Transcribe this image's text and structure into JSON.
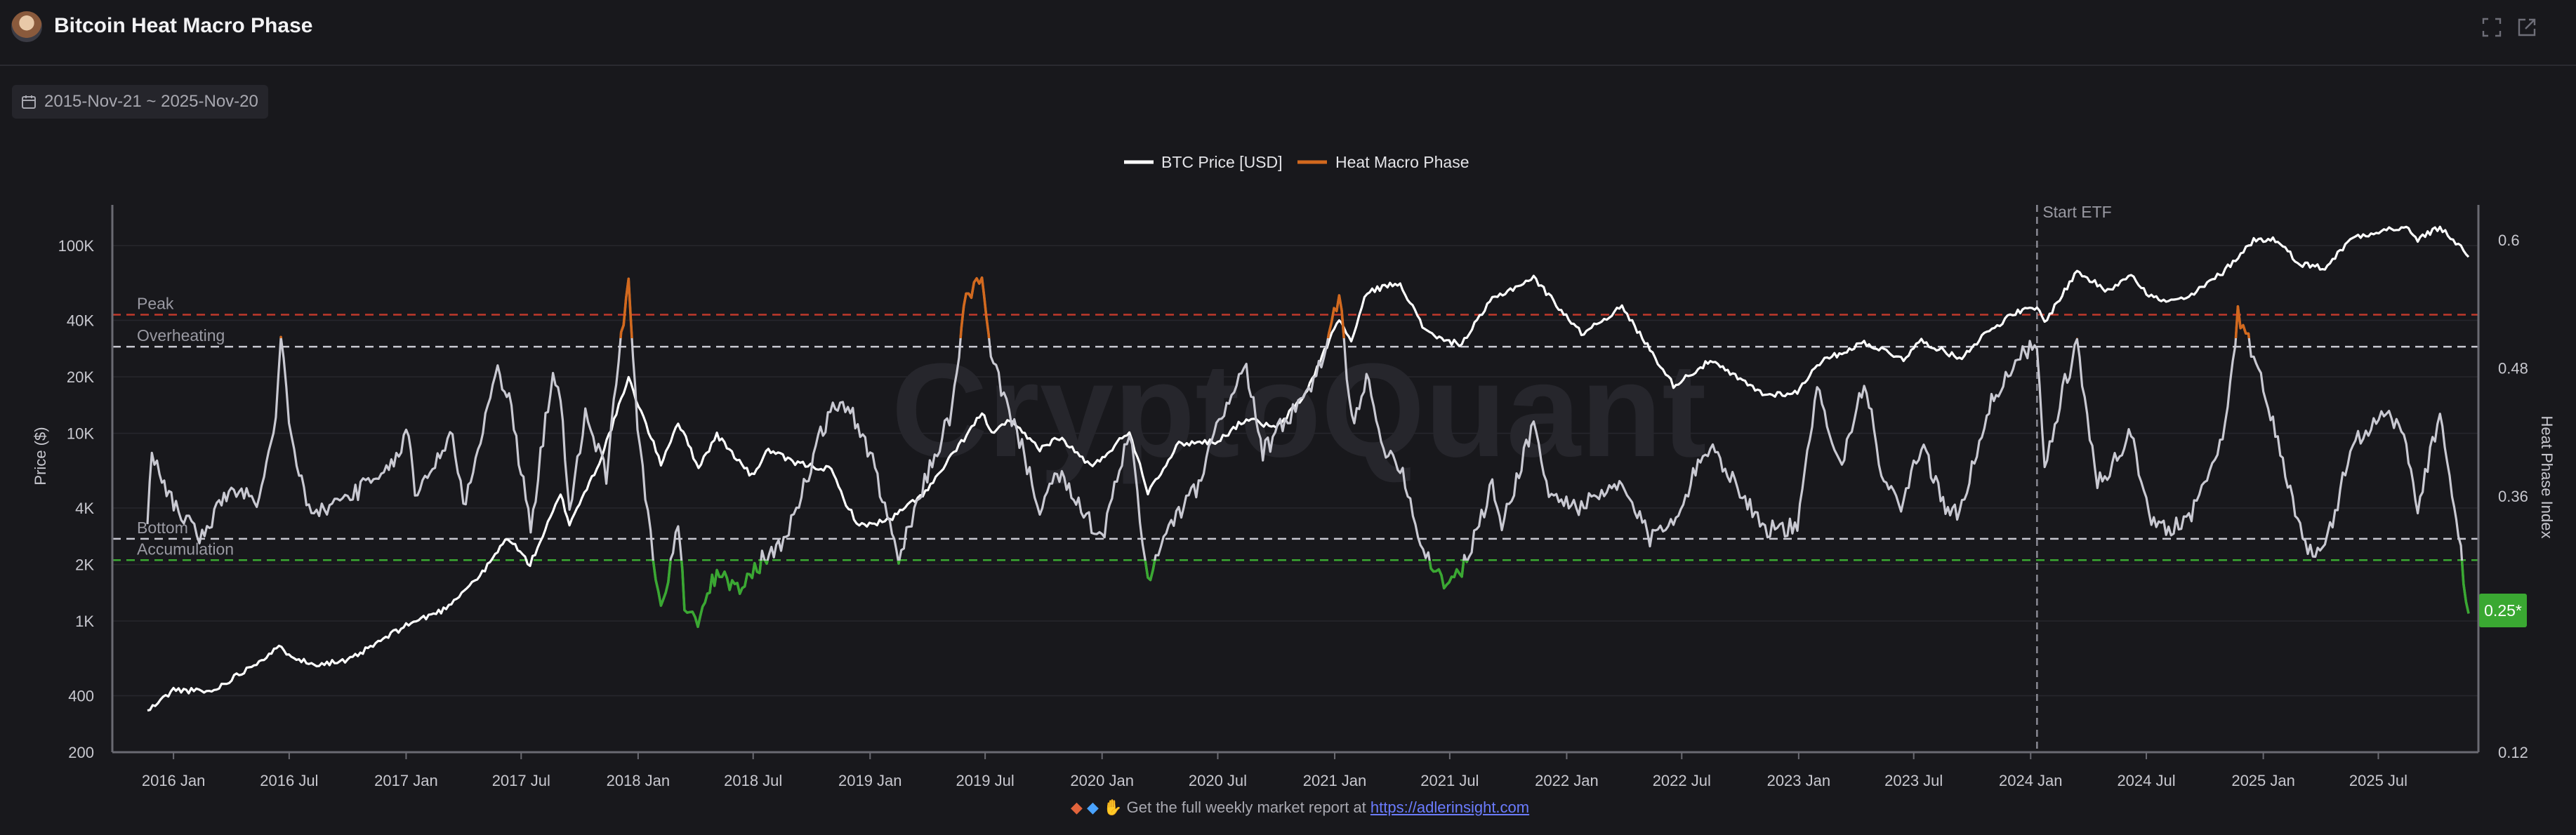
{
  "header": {
    "title": "Bitcoin Heat Macro Phase"
  },
  "toolbar": {
    "date_range": "2015-Nov-21 ~ 2025-Nov-20"
  },
  "footer": {
    "text": "Get the full weekly market report at",
    "link": "https://adlerinsight.com"
  },
  "colors": {
    "background": "#18181c",
    "price": "#ffffff",
    "heat": "#c9c9d2",
    "overheat": "#d2691e",
    "accumulation": "#3aa832",
    "peak_line": "#c0392b",
    "badge": "#3aa832"
  },
  "icons": [
    "avatar",
    "calendar-icon",
    "expand-icon",
    "open-icon"
  ],
  "chart_data": {
    "type": "line",
    "title": "",
    "x_range": [
      "2015-11-21",
      "2025-11-20"
    ],
    "x_ticks": [
      "2016 Jan",
      "2016 Jul",
      "2017 Jan",
      "2017 Jul",
      "2018 Jan",
      "2018 Jul",
      "2019 Jan",
      "2019 Jul",
      "2020 Jan",
      "2020 Jul",
      "2021 Jan",
      "2021 Jul",
      "2022 Jan",
      "2022 Jul",
      "2023 Jan",
      "2023 Jul",
      "2024 Jan",
      "2024 Jul",
      "2025 Jan",
      "2025 Jul"
    ],
    "y_left": {
      "label": "Price ($)",
      "scale": "log",
      "range": [
        200,
        150000
      ],
      "ticks": [
        "200",
        "400",
        "1K",
        "2K",
        "4K",
        "10K",
        "20K",
        "40K",
        "100K"
      ],
      "tick_values": [
        200,
        400,
        1000,
        2000,
        4000,
        10000,
        20000,
        40000,
        100000
      ]
    },
    "y_right": {
      "label": "Heat Phase Index",
      "range": [
        0.12,
        0.62
      ],
      "ticks": [
        "0.12",
        "0.36",
        "0.48",
        "0.6"
      ],
      "tick_values": [
        0.12,
        0.36,
        0.48,
        0.6
      ]
    },
    "legend": {
      "placement": "top-center",
      "items": [
        "BTC Price [USD]",
        "Heat Macro Phase"
      ]
    },
    "thresholds": [
      {
        "name": "Peak",
        "value": 0.53,
        "style": "dashed-red"
      },
      {
        "name": "Overheating",
        "value": 0.5,
        "style": "dashed-white"
      },
      {
        "name": "Bottom",
        "value": 0.32,
        "style": "dashed-white"
      },
      {
        "name": "Accumulation",
        "value": 0.3,
        "style": "dashed-green"
      }
    ],
    "events": [
      {
        "label": "Start ETF",
        "date": "2024-01-11"
      }
    ],
    "current_value_badge": "0.25*",
    "series": [
      {
        "name": "BTC Price [USD]",
        "axis": "left",
        "points": [
          [
            "2015-11-21",
            330
          ],
          [
            "2016-01-01",
            430
          ],
          [
            "2016-03-01",
            420
          ],
          [
            "2016-06-15",
            720
          ],
          [
            "2016-08-01",
            590
          ],
          [
            "2016-10-01",
            610
          ],
          [
            "2017-01-01",
            950
          ],
          [
            "2017-03-01",
            1150
          ],
          [
            "2017-05-01",
            1800
          ],
          [
            "2017-06-10",
            2800
          ],
          [
            "2017-07-15",
            2000
          ],
          [
            "2017-09-01",
            4700
          ],
          [
            "2017-09-15",
            3300
          ],
          [
            "2017-11-01",
            7000
          ],
          [
            "2017-12-17",
            19500
          ],
          [
            "2018-02-06",
            6900
          ],
          [
            "2018-03-05",
            11500
          ],
          [
            "2018-04-06",
            6600
          ],
          [
            "2018-05-05",
            9800
          ],
          [
            "2018-06-29",
            5900
          ],
          [
            "2018-07-25",
            8200
          ],
          [
            "2018-09-01",
            7000
          ],
          [
            "2018-11-01",
            6400
          ],
          [
            "2018-11-20",
            4500
          ],
          [
            "2018-12-15",
            3200
          ],
          [
            "2019-02-01",
            3450
          ],
          [
            "2019-04-02",
            5000
          ],
          [
            "2019-06-26",
            12800
          ],
          [
            "2019-07-15",
            9800
          ],
          [
            "2019-08-05",
            11800
          ],
          [
            "2019-09-25",
            8300
          ],
          [
            "2019-10-26",
            9500
          ],
          [
            "2019-12-17",
            6600
          ],
          [
            "2020-02-13",
            10300
          ],
          [
            "2020-03-13",
            4900
          ],
          [
            "2020-05-01",
            8800
          ],
          [
            "2020-07-01",
            9100
          ],
          [
            "2020-08-15",
            12000
          ],
          [
            "2020-10-01",
            10600
          ],
          [
            "2020-11-15",
            16000
          ],
          [
            "2021-01-08",
            41000
          ],
          [
            "2021-01-27",
            30500
          ],
          [
            "2021-02-21",
            57000
          ],
          [
            "2021-04-14",
            63500
          ],
          [
            "2021-05-19",
            37000
          ],
          [
            "2021-06-22",
            31000
          ],
          [
            "2021-07-20",
            30000
          ],
          [
            "2021-09-06",
            52000
          ],
          [
            "2021-11-10",
            67500
          ],
          [
            "2022-01-24",
            34000
          ],
          [
            "2022-03-29",
            47000
          ],
          [
            "2022-05-12",
            28000
          ],
          [
            "2022-06-18",
            18000
          ],
          [
            "2022-08-15",
            24300
          ],
          [
            "2022-10-01",
            19300
          ],
          [
            "2022-11-09",
            16000
          ],
          [
            "2022-12-30",
            16500
          ],
          [
            "2023-01-30",
            23500
          ],
          [
            "2023-04-14",
            30500
          ],
          [
            "2023-06-15",
            25000
          ],
          [
            "2023-07-13",
            31200
          ],
          [
            "2023-09-11",
            25000
          ],
          [
            "2023-10-24",
            34500
          ],
          [
            "2023-12-08",
            44000
          ],
          [
            "2024-01-11",
            46500
          ],
          [
            "2024-01-23",
            39000
          ],
          [
            "2024-03-14",
            73000
          ],
          [
            "2024-05-01",
            57000
          ],
          [
            "2024-06-07",
            71500
          ],
          [
            "2024-07-05",
            54000
          ],
          [
            "2024-08-05",
            50000
          ],
          [
            "2024-09-06",
            53000
          ],
          [
            "2024-10-29",
            72000
          ],
          [
            "2024-12-17",
            107000
          ],
          [
            "2025-01-20",
            108000
          ],
          [
            "2025-02-28",
            80000
          ],
          [
            "2025-04-08",
            76000
          ],
          [
            "2025-05-22",
            111000
          ],
          [
            "2025-07-14",
            122000
          ],
          [
            "2025-08-14",
            124000
          ],
          [
            "2025-09-01",
            108000
          ],
          [
            "2025-10-06",
            125000
          ],
          [
            "2025-11-04",
            101000
          ],
          [
            "2025-11-20",
            87000
          ]
        ]
      },
      {
        "name": "Heat Macro Phase",
        "axis": "right",
        "points": [
          [
            "2015-11-21",
            0.34
          ],
          [
            "2015-11-28",
            0.4
          ],
          [
            "2015-12-10",
            0.38
          ],
          [
            "2016-01-05",
            0.35
          ],
          [
            "2016-02-15",
            0.32
          ],
          [
            "2016-04-01",
            0.37
          ],
          [
            "2016-05-15",
            0.35
          ],
          [
            "2016-06-10",
            0.43
          ],
          [
            "2016-06-18",
            0.51
          ],
          [
            "2016-07-05",
            0.41
          ],
          [
            "2016-08-05",
            0.34
          ],
          [
            "2016-10-01",
            0.36
          ],
          [
            "2016-12-01",
            0.38
          ],
          [
            "2017-01-05",
            0.42
          ],
          [
            "2017-01-15",
            0.36
          ],
          [
            "2017-03-15",
            0.42
          ],
          [
            "2017-04-01",
            0.35
          ],
          [
            "2017-05-25",
            0.48
          ],
          [
            "2017-06-12",
            0.45
          ],
          [
            "2017-07-16",
            0.33
          ],
          [
            "2017-08-20",
            0.48
          ],
          [
            "2017-09-01",
            0.45
          ],
          [
            "2017-09-15",
            0.34
          ],
          [
            "2017-10-10",
            0.44
          ],
          [
            "2017-11-12",
            0.38
          ],
          [
            "2017-12-17",
            0.57
          ],
          [
            "2017-12-31",
            0.42
          ],
          [
            "2018-02-06",
            0.25
          ],
          [
            "2018-02-25",
            0.31
          ],
          [
            "2018-03-05",
            0.33
          ],
          [
            "2018-03-15",
            0.26
          ],
          [
            "2018-04-05",
            0.24
          ],
          [
            "2018-05-05",
            0.29
          ],
          [
            "2018-06-10",
            0.27
          ],
          [
            "2018-07-15",
            0.3
          ],
          [
            "2018-08-10",
            0.31
          ],
          [
            "2018-09-15",
            0.36
          ],
          [
            "2018-10-15",
            0.42
          ],
          [
            "2018-11-15",
            0.45
          ],
          [
            "2018-12-01",
            0.44
          ],
          [
            "2019-01-01",
            0.4
          ],
          [
            "2019-02-01",
            0.33
          ],
          [
            "2019-02-15",
            0.3
          ],
          [
            "2019-04-01",
            0.38
          ],
          [
            "2019-05-10",
            0.44
          ],
          [
            "2019-06-01",
            0.55
          ],
          [
            "2019-06-26",
            0.56
          ],
          [
            "2019-07-10",
            0.49
          ],
          [
            "2019-08-20",
            0.42
          ],
          [
            "2019-09-25",
            0.35
          ],
          [
            "2019-10-26",
            0.38
          ],
          [
            "2019-11-25",
            0.35
          ],
          [
            "2020-01-01",
            0.32
          ],
          [
            "2020-02-13",
            0.42
          ],
          [
            "2020-03-13",
            0.28
          ],
          [
            "2020-04-15",
            0.33
          ],
          [
            "2020-06-01",
            0.37
          ],
          [
            "2020-07-15",
            0.45
          ],
          [
            "2020-08-15",
            0.48
          ],
          [
            "2020-09-10",
            0.4
          ],
          [
            "2020-10-15",
            0.43
          ],
          [
            "2020-11-25",
            0.46
          ],
          [
            "2020-12-15",
            0.49
          ],
          [
            "2021-01-08",
            0.55
          ],
          [
            "2021-01-28",
            0.43
          ],
          [
            "2021-02-20",
            0.47
          ],
          [
            "2021-03-15",
            0.41
          ],
          [
            "2021-04-14",
            0.39
          ],
          [
            "2021-05-20",
            0.31
          ],
          [
            "2021-06-22",
            0.28
          ],
          [
            "2021-07-20",
            0.29
          ],
          [
            "2021-08-20",
            0.34
          ],
          [
            "2021-09-06",
            0.37
          ],
          [
            "2021-09-21",
            0.33
          ],
          [
            "2021-11-10",
            0.43
          ],
          [
            "2021-12-04",
            0.36
          ],
          [
            "2022-01-24",
            0.35
          ],
          [
            "2022-03-29",
            0.37
          ],
          [
            "2022-05-12",
            0.32
          ],
          [
            "2022-06-18",
            0.34
          ],
          [
            "2022-08-15",
            0.41
          ],
          [
            "2022-09-15",
            0.38
          ],
          [
            "2022-11-09",
            0.33
          ],
          [
            "2022-12-30",
            0.33
          ],
          [
            "2023-01-30",
            0.46
          ],
          [
            "2023-03-10",
            0.39
          ],
          [
            "2023-04-14",
            0.47
          ],
          [
            "2023-05-15",
            0.37
          ],
          [
            "2023-06-15",
            0.35
          ],
          [
            "2023-07-13",
            0.41
          ],
          [
            "2023-08-20",
            0.35
          ],
          [
            "2023-09-11",
            0.34
          ],
          [
            "2023-10-24",
            0.44
          ],
          [
            "2023-11-15",
            0.46
          ],
          [
            "2023-12-08",
            0.49
          ],
          [
            "2024-01-11",
            0.5
          ],
          [
            "2024-01-23",
            0.38
          ],
          [
            "2024-02-20",
            0.46
          ],
          [
            "2024-03-14",
            0.5
          ],
          [
            "2024-04-15",
            0.37
          ],
          [
            "2024-05-20",
            0.4
          ],
          [
            "2024-06-07",
            0.42
          ],
          [
            "2024-07-05",
            0.34
          ],
          [
            "2024-08-05",
            0.33
          ],
          [
            "2024-09-06",
            0.34
          ],
          [
            "2024-10-29",
            0.41
          ],
          [
            "2024-11-22",
            0.53
          ],
          [
            "2024-12-17",
            0.49
          ],
          [
            "2025-01-20",
            0.42
          ],
          [
            "2025-02-28",
            0.33
          ],
          [
            "2025-03-20",
            0.3
          ],
          [
            "2025-04-08",
            0.31
          ],
          [
            "2025-05-22",
            0.41
          ],
          [
            "2025-07-14",
            0.44
          ],
          [
            "2025-08-14",
            0.41
          ],
          [
            "2025-09-01",
            0.35
          ],
          [
            "2025-10-06",
            0.44
          ],
          [
            "2025-10-25",
            0.36
          ],
          [
            "2025-11-04",
            0.33
          ],
          [
            "2025-11-12",
            0.28
          ],
          [
            "2025-11-20",
            0.25
          ]
        ]
      }
    ]
  }
}
